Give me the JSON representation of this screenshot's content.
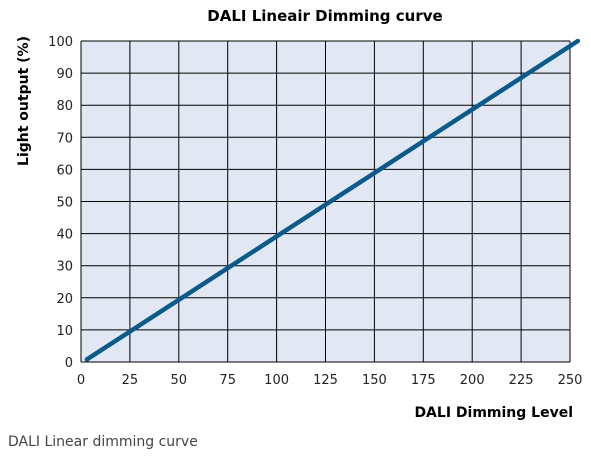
{
  "chart_data": {
    "type": "line",
    "title": "DALI Lineair Dimming curve",
    "xlabel": "DALI Dimming Level",
    "ylabel": "Light output (%)",
    "xlim": [
      0,
      250
    ],
    "ylim": [
      0,
      100
    ],
    "x_ticks": [
      "0",
      "25",
      "50",
      "75",
      "100",
      "125",
      "150",
      "175",
      "200",
      "225",
      "250"
    ],
    "y_ticks": [
      "0",
      "10",
      "20",
      "30",
      "40",
      "50",
      "60",
      "70",
      "80",
      "90",
      "100"
    ],
    "grid": true,
    "series": [
      {
        "x": [
          3,
          254
        ],
        "y": [
          0.8,
          100
        ]
      }
    ],
    "colors": {
      "line": "#0b5a8a",
      "plot_bg": "#e1e8f4",
      "grid": "#000000"
    }
  },
  "caption": "DALI Linear dimming curve"
}
